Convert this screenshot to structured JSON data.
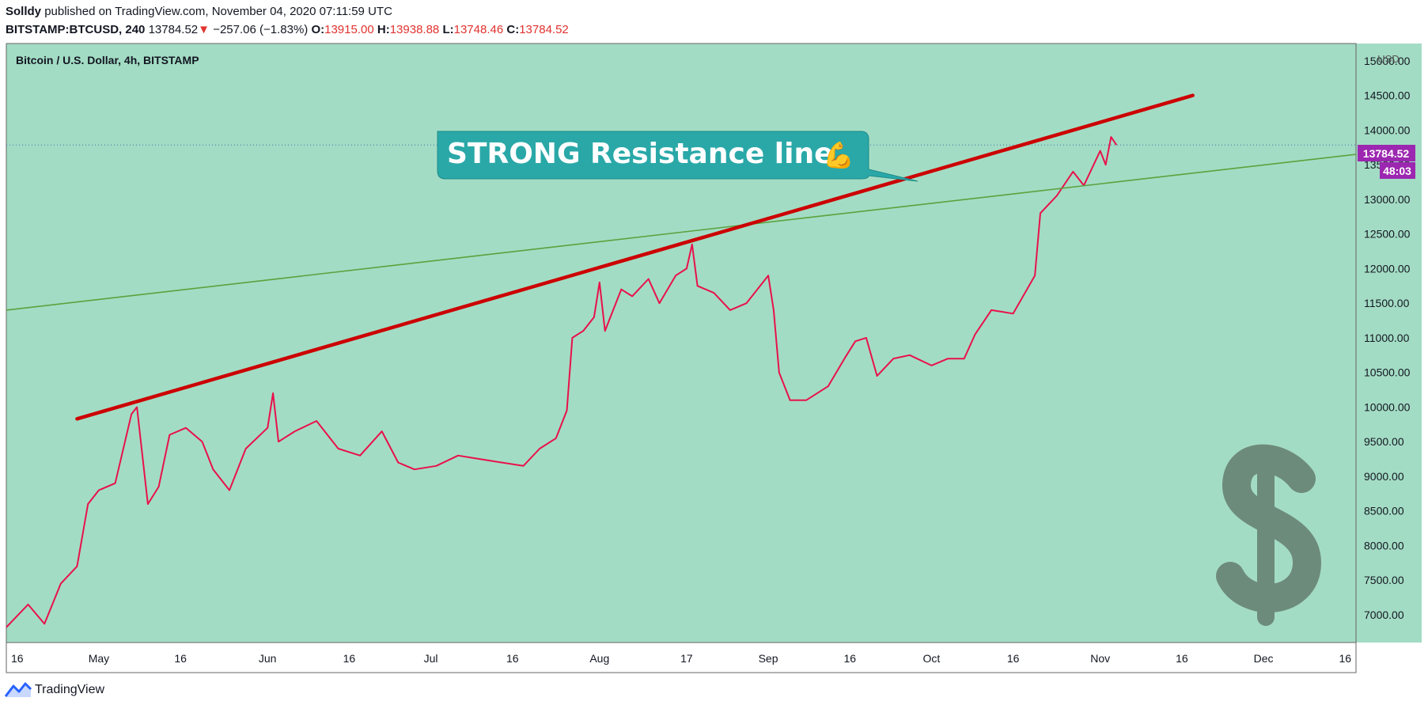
{
  "header": {
    "author": "Solldy",
    "published_text": "published on TradingView.com, November 04, 2020 07:11:59 UTC",
    "symbol": "BITSTAMP:BTCUSD, 240",
    "last": "13784.52",
    "change_arrow": "▼",
    "change": "−257.06 (−1.83%)",
    "o_label": "O:",
    "o_value": "13915.00",
    "h_label": "H:",
    "h_value": "13938.88",
    "l_label": "L:",
    "l_value": "13748.46",
    "c_label": "C:",
    "c_value": "13784.52"
  },
  "chart_title": "Bitcoin / U.S. Dollar, 4h, BITSTAMP",
  "currency": "USD",
  "price_badge": "13784.52",
  "countdown_badge": "48:03",
  "annotation": {
    "text": "STRONG Resistance line",
    "emoji": "💪"
  },
  "footer": {
    "brand": "TradingView"
  },
  "colors": {
    "background": "#a3dcc4",
    "candle": "#e8114b",
    "resistance_line": "#cc0000",
    "trend_line": "#5ca13e",
    "callout": "#2aa8a8",
    "badge": "#9c27b0",
    "dollar_sign": "#6d8b7b"
  },
  "chart_data": {
    "type": "line",
    "title": "Bitcoin / U.S. Dollar, 4h, BITSTAMP",
    "y_unit": "USD",
    "ylim": [
      6600,
      15250
    ],
    "y_ticks": [
      7000,
      7500,
      8000,
      8500,
      9000,
      9500,
      10000,
      10500,
      11000,
      11500,
      12000,
      12500,
      13000,
      13500,
      14000,
      14500,
      15000
    ],
    "y_tick_labels": [
      "7000.00",
      "7500.00",
      "8000.00",
      "8500.00",
      "9000.00",
      "9500.00",
      "10000.00",
      "10500.00",
      "11000.00",
      "11500.00",
      "12000.00",
      "12500.00",
      "13000.00",
      "13500.00",
      "14000.00",
      "14500.00",
      "15000.00"
    ],
    "x_tick_labels": [
      {
        "label": "16",
        "date": "2020-04-16"
      },
      {
        "label": "May",
        "date": "2020-05-01"
      },
      {
        "label": "16",
        "date": "2020-05-16"
      },
      {
        "label": "Jun",
        "date": "2020-06-01"
      },
      {
        "label": "16",
        "date": "2020-06-16"
      },
      {
        "label": "Jul",
        "date": "2020-07-01"
      },
      {
        "label": "16",
        "date": "2020-07-16"
      },
      {
        "label": "Aug",
        "date": "2020-08-01"
      },
      {
        "label": "17",
        "date": "2020-08-17"
      },
      {
        "label": "Sep",
        "date": "2020-09-01"
      },
      {
        "label": "16",
        "date": "2020-09-16"
      },
      {
        "label": "Oct",
        "date": "2020-10-01"
      },
      {
        "label": "16",
        "date": "2020-10-16"
      },
      {
        "label": "Nov",
        "date": "2020-11-01"
      },
      {
        "label": "16",
        "date": "2020-11-16"
      },
      {
        "label": "Dec",
        "date": "2020-12-01"
      },
      {
        "label": "16",
        "date": "2020-12-16"
      }
    ],
    "xlim": [
      "2020-04-14",
      "2020-12-18"
    ],
    "series": [
      {
        "points": [
          [
            "2020-04-14",
            6820
          ],
          [
            "2020-04-18",
            7150
          ],
          [
            "2020-04-21",
            6870
          ],
          [
            "2020-04-24",
            7450
          ],
          [
            "2020-04-27",
            7700
          ],
          [
            "2020-04-29",
            8600
          ],
          [
            "2020-05-01",
            8800
          ],
          [
            "2020-05-04",
            8900
          ],
          [
            "2020-05-07",
            9900
          ],
          [
            "2020-05-08",
            10000
          ],
          [
            "2020-05-10",
            8600
          ],
          [
            "2020-05-12",
            8850
          ],
          [
            "2020-05-14",
            9600
          ],
          [
            "2020-05-17",
            9700
          ],
          [
            "2020-05-20",
            9500
          ],
          [
            "2020-05-22",
            9100
          ],
          [
            "2020-05-25",
            8800
          ],
          [
            "2020-05-28",
            9400
          ],
          [
            "2020-06-01",
            9700
          ],
          [
            "2020-06-02",
            10200
          ],
          [
            "2020-06-03",
            9500
          ],
          [
            "2020-06-06",
            9650
          ],
          [
            "2020-06-10",
            9800
          ],
          [
            "2020-06-14",
            9400
          ],
          [
            "2020-06-18",
            9300
          ],
          [
            "2020-06-22",
            9650
          ],
          [
            "2020-06-25",
            9200
          ],
          [
            "2020-06-28",
            9100
          ],
          [
            "2020-07-02",
            9150
          ],
          [
            "2020-07-06",
            9300
          ],
          [
            "2020-07-10",
            9250
          ],
          [
            "2020-07-14",
            9200
          ],
          [
            "2020-07-18",
            9150
          ],
          [
            "2020-07-21",
            9400
          ],
          [
            "2020-07-24",
            9550
          ],
          [
            "2020-07-26",
            9950
          ],
          [
            "2020-07-27",
            11000
          ],
          [
            "2020-07-29",
            11100
          ],
          [
            "2020-07-31",
            11300
          ],
          [
            "2020-08-01",
            11800
          ],
          [
            "2020-08-02",
            11100
          ],
          [
            "2020-08-05",
            11700
          ],
          [
            "2020-08-07",
            11600
          ],
          [
            "2020-08-10",
            11850
          ],
          [
            "2020-08-12",
            11500
          ],
          [
            "2020-08-15",
            11900
          ],
          [
            "2020-08-17",
            12000
          ],
          [
            "2020-08-18",
            12350
          ],
          [
            "2020-08-19",
            11750
          ],
          [
            "2020-08-22",
            11650
          ],
          [
            "2020-08-25",
            11400
          ],
          [
            "2020-08-28",
            11500
          ],
          [
            "2020-09-01",
            11900
          ],
          [
            "2020-09-02",
            11400
          ],
          [
            "2020-09-03",
            10500
          ],
          [
            "2020-09-05",
            10100
          ],
          [
            "2020-09-08",
            10100
          ],
          [
            "2020-09-12",
            10300
          ],
          [
            "2020-09-15",
            10700
          ],
          [
            "2020-09-17",
            10950
          ],
          [
            "2020-09-19",
            11000
          ],
          [
            "2020-09-21",
            10450
          ],
          [
            "2020-09-24",
            10700
          ],
          [
            "2020-09-27",
            10750
          ],
          [
            "2020-10-01",
            10600
          ],
          [
            "2020-10-04",
            10700
          ],
          [
            "2020-10-07",
            10700
          ],
          [
            "2020-10-09",
            11050
          ],
          [
            "2020-10-12",
            11400
          ],
          [
            "2020-10-16",
            11350
          ],
          [
            "2020-10-20",
            11900
          ],
          [
            "2020-10-21",
            12800
          ],
          [
            "2020-10-24",
            13050
          ],
          [
            "2020-10-27",
            13400
          ],
          [
            "2020-10-29",
            13200
          ],
          [
            "2020-11-01",
            13700
          ],
          [
            "2020-11-02",
            13500
          ],
          [
            "2020-11-03",
            13900
          ],
          [
            "2020-11-04",
            13784.52
          ]
        ]
      }
    ],
    "resistance_line": {
      "start": [
        "2020-04-27",
        9830
      ],
      "end": [
        "2020-11-18",
        14500
      ]
    },
    "trend_line": {
      "start": [
        "2020-04-14",
        11400
      ],
      "end": [
        "2020-12-18",
        13650
      ]
    }
  }
}
